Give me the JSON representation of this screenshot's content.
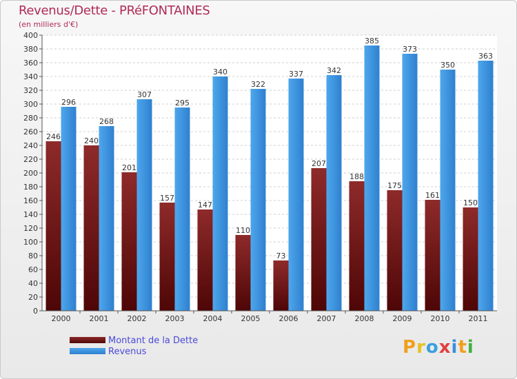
{
  "title": "Revenus/Dette - PRéFONTAINES",
  "subtitle": "(en milliers d'€)",
  "logo": "Proxiti",
  "colors": {
    "dette": "#7a1a1a",
    "revenus": "#3a8fdf",
    "title": "#b02a55",
    "legend_text": "#4a4ad8"
  },
  "legend": [
    {
      "label": "Montant de la Dette"
    },
    {
      "label": "Revenus"
    }
  ],
  "chart_data": {
    "type": "bar",
    "categories": [
      "2000",
      "2001",
      "2002",
      "2003",
      "2004",
      "2005",
      "2006",
      "2007",
      "2008",
      "2009",
      "2010",
      "2011"
    ],
    "series": [
      {
        "name": "Montant de la Dette",
        "values": [
          246,
          240,
          201,
          157,
          147,
          110,
          73,
          207,
          188,
          175,
          161,
          150
        ]
      },
      {
        "name": "Revenus",
        "values": [
          296,
          268,
          307,
          295,
          340,
          322,
          337,
          342,
          385,
          373,
          350,
          363
        ]
      }
    ],
    "ylim": [
      0,
      400
    ],
    "yticks": [
      0,
      20,
      40,
      60,
      80,
      100,
      120,
      140,
      160,
      180,
      200,
      220,
      240,
      260,
      280,
      300,
      320,
      340,
      360,
      380,
      400
    ],
    "grid": true,
    "legend_position": "bottom-left"
  }
}
